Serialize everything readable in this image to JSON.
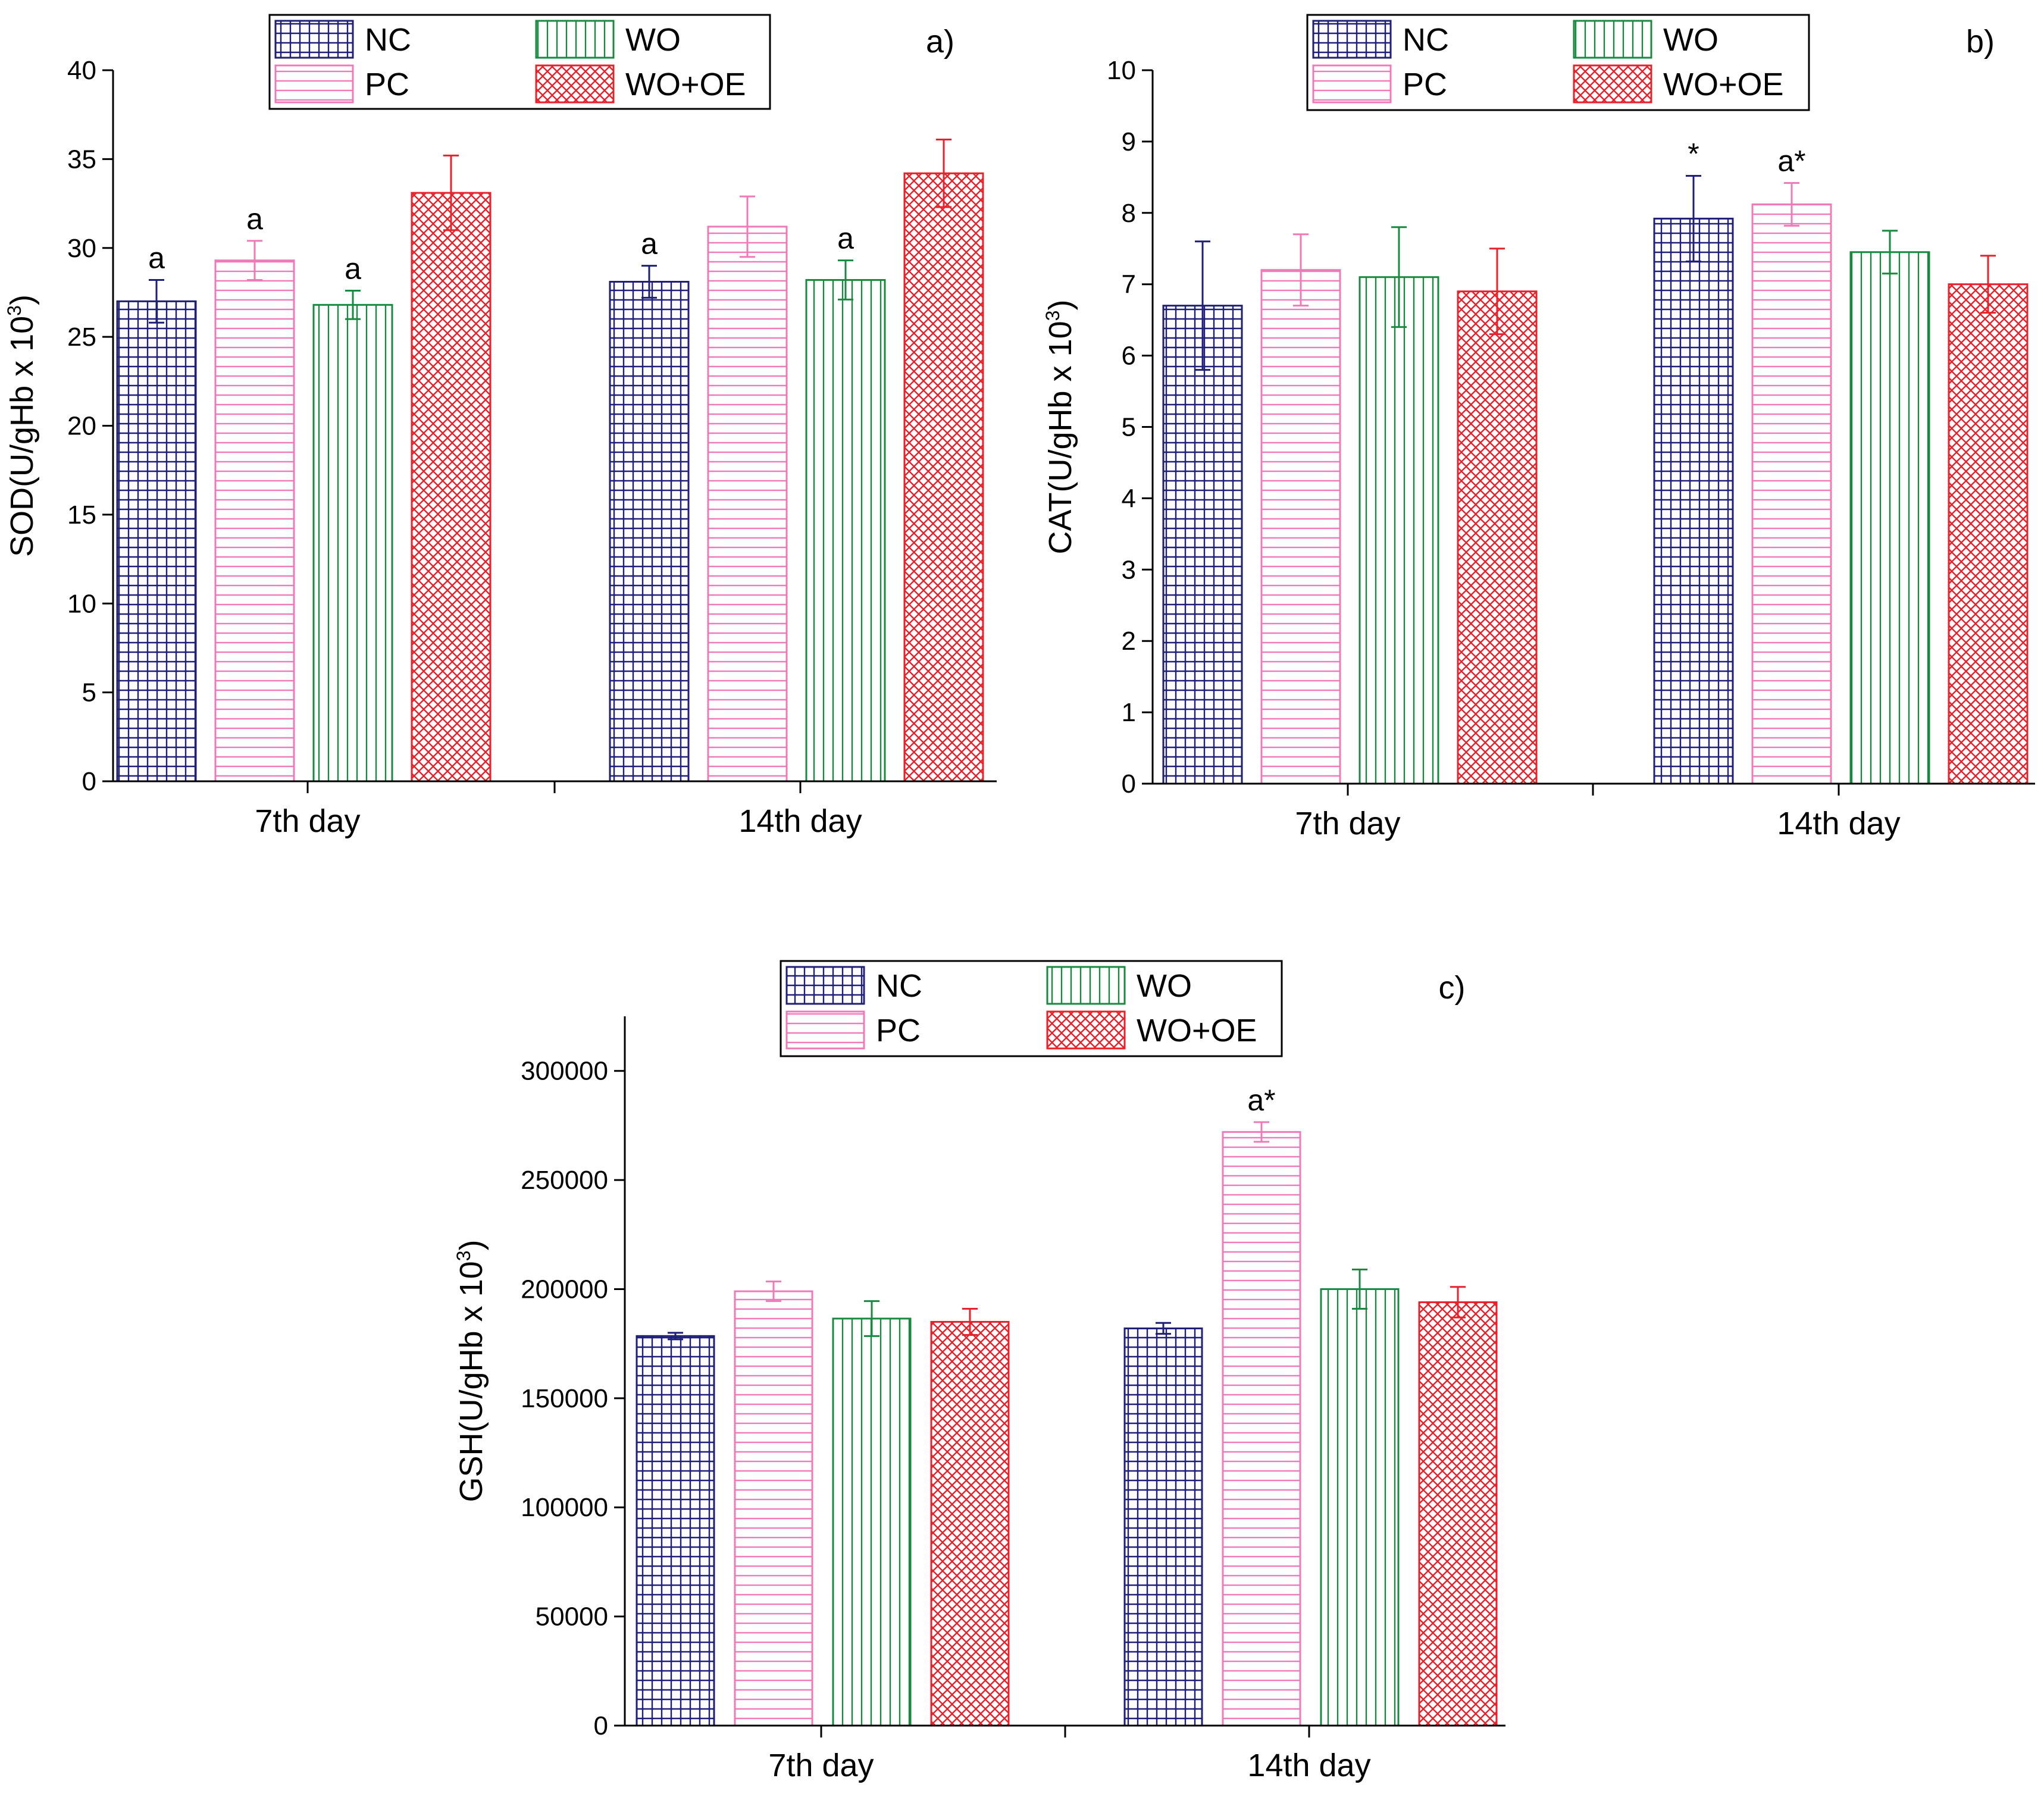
{
  "colors": {
    "NC": "#1f1f7a",
    "PC": "#f07ab8",
    "WO": "#178a3f",
    "WO+OE": "#e8212a"
  },
  "chart_data": [
    {
      "type": "bar",
      "panel": "a)",
      "categories": [
        "7th day",
        "14th day"
      ],
      "ylabel": "SOD(U/gHb x 10",
      "ylabel_sup": "3",
      "ylabel_close": ")",
      "ylim": [
        0,
        40
      ],
      "yticks": [
        0,
        5,
        10,
        15,
        20,
        25,
        30,
        35,
        40
      ],
      "legend": [
        "NC",
        "WO",
        "PC",
        "WO+OE"
      ],
      "legend_position": "top-left",
      "series": [
        {
          "name": "NC",
          "pattern": "grid",
          "values": [
            27.0,
            28.1
          ],
          "errors": [
            1.2,
            0.9
          ],
          "annotations": [
            "a",
            "a"
          ]
        },
        {
          "name": "PC",
          "pattern": "hlines",
          "values": [
            29.3,
            31.2
          ],
          "errors": [
            1.1,
            1.7
          ],
          "annotations": [
            "a",
            ""
          ]
        },
        {
          "name": "WO",
          "pattern": "vlines",
          "values": [
            26.8,
            28.2
          ],
          "errors": [
            0.8,
            1.1
          ],
          "annotations": [
            "a",
            "a"
          ]
        },
        {
          "name": "WO+OE",
          "pattern": "cross",
          "values": [
            33.1,
            34.2
          ],
          "errors": [
            2.1,
            1.9
          ],
          "annotations": [
            "",
            ""
          ]
        }
      ]
    },
    {
      "type": "bar",
      "panel": "b)",
      "categories": [
        "7th day",
        "14th day"
      ],
      "ylabel": "CAT(U/gHb x 10",
      "ylabel_sup": "3",
      "ylabel_close": ")",
      "ylim": [
        0,
        10
      ],
      "yticks": [
        0,
        1,
        2,
        3,
        4,
        5,
        6,
        7,
        8,
        9,
        10
      ],
      "legend": [
        "NC",
        "WO",
        "PC",
        "WO+OE"
      ],
      "legend_position": "top-left",
      "series": [
        {
          "name": "NC",
          "pattern": "grid",
          "values": [
            6.7,
            7.92
          ],
          "errors": [
            0.9,
            0.6
          ],
          "annotations": [
            "",
            "*"
          ]
        },
        {
          "name": "PC",
          "pattern": "hlines",
          "values": [
            7.2,
            8.12
          ],
          "errors": [
            0.5,
            0.3
          ],
          "annotations": [
            "",
            "a*"
          ]
        },
        {
          "name": "WO",
          "pattern": "vlines",
          "values": [
            7.1,
            7.45
          ],
          "errors": [
            0.7,
            0.3
          ],
          "annotations": [
            "",
            ""
          ]
        },
        {
          "name": "WO+OE",
          "pattern": "cross",
          "values": [
            6.9,
            7.0
          ],
          "errors": [
            0.6,
            0.4
          ],
          "annotations": [
            "",
            ""
          ]
        }
      ]
    },
    {
      "type": "bar",
      "panel": "c)",
      "categories": [
        "7th day",
        "14th day"
      ],
      "ylabel": "GSH(U/gHb x 10",
      "ylabel_sup": "3",
      "ylabel_close": ")",
      "ylim": [
        0,
        325000
      ],
      "yticks": [
        0,
        50000,
        100000,
        150000,
        200000,
        250000,
        300000
      ],
      "legend": [
        "NC",
        "WO",
        "PC",
        "WO+OE"
      ],
      "legend_position": "top-left",
      "series": [
        {
          "name": "NC",
          "pattern": "grid",
          "values": [
            178500,
            182000
          ],
          "errors": [
            1500,
            2500
          ],
          "annotations": [
            "",
            ""
          ]
        },
        {
          "name": "PC",
          "pattern": "hlines",
          "values": [
            199000,
            272000
          ],
          "errors": [
            4500,
            4500
          ],
          "annotations": [
            "",
            "a*"
          ]
        },
        {
          "name": "WO",
          "pattern": "vlines",
          "values": [
            186500,
            200000
          ],
          "errors": [
            8000,
            9000
          ],
          "annotations": [
            "",
            ""
          ]
        },
        {
          "name": "WO+OE",
          "pattern": "cross",
          "values": [
            185000,
            194000
          ],
          "errors": [
            6000,
            7000
          ],
          "annotations": [
            "",
            ""
          ]
        }
      ]
    }
  ]
}
